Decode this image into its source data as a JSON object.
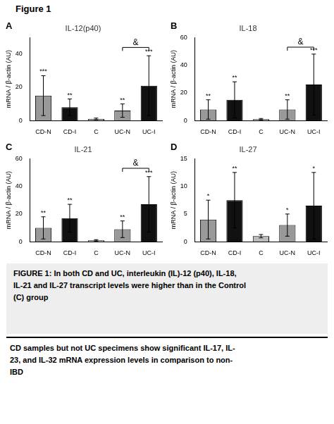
{
  "title": "Figure 1",
  "annotations": [
    "FIGURE 1: In both CD and UC, interleukin (IL)-12 (p40), IL-18,\nIL-21 and IL-27 transcript levels were higher than in the Control\n(C) group",
    "CD samples but not UC specimens show significant IL-17, IL-\n23, and IL-32 mRNA expression levels in comparison to non-\nIBD"
  ],
  "chart_data": [
    {
      "type": "bar",
      "label": "A",
      "title": "IL-12(p40)",
      "ylabel": "mRNA / β-actin (AU)",
      "categories": [
        "CD-N",
        "CD-I",
        "C",
        "UC-N",
        "UC-I"
      ],
      "values": [
        15,
        8,
        1,
        6,
        21
      ],
      "errors": [
        12,
        5,
        0.5,
        4,
        18
      ],
      "colors": [
        "#999999",
        "#111111",
        "#bbbbbb",
        "#999999",
        "#111111"
      ],
      "sig_labels": [
        "***",
        "**",
        null,
        "**",
        "***"
      ],
      "bracket": {
        "from": "UC-N",
        "to": "UC-I",
        "y": 44,
        "text": "&"
      },
      "ylim": [
        0,
        50
      ],
      "yticks": [
        0,
        20,
        40
      ],
      "grid": false
    },
    {
      "type": "bar",
      "label": "B",
      "title": "IL-18",
      "ylabel": "mRNA / β-actin (AU)",
      "categories": [
        "CD-N",
        "CD-I",
        "C",
        "UC-N",
        "UC-I"
      ],
      "values": [
        8,
        15,
        1,
        8,
        26
      ],
      "errors": [
        7,
        13,
        0.5,
        7,
        22
      ],
      "colors": [
        "#999999",
        "#111111",
        "#bbbbbb",
        "#999999",
        "#111111"
      ],
      "sig_labels": [
        "**",
        "**",
        null,
        "**",
        "***"
      ],
      "bracket": {
        "from": "UC-N",
        "to": "UC-I",
        "y": 53,
        "text": "&"
      },
      "ylim": [
        0,
        60
      ],
      "yticks": [
        0,
        20,
        40,
        60
      ],
      "grid": false
    },
    {
      "type": "bar",
      "label": "C",
      "title": "IL-21",
      "ylabel": "mRNA / β-actin (AU)",
      "categories": [
        "CD-N",
        "CD-I",
        "C",
        "UC-N",
        "UC-I"
      ],
      "values": [
        10,
        17,
        1,
        9,
        27
      ],
      "errors": [
        8,
        10,
        0.5,
        6,
        20
      ],
      "colors": [
        "#999999",
        "#111111",
        "#bbbbbb",
        "#999999",
        "#111111"
      ],
      "sig_labels": [
        "**",
        "**",
        null,
        "**",
        "***"
      ],
      "bracket": {
        "from": "UC-N",
        "to": "UC-I",
        "y": 53,
        "text": "&"
      },
      "ylim": [
        0,
        60
      ],
      "yticks": [
        0,
        20,
        40,
        60
      ],
      "grid": false
    },
    {
      "type": "bar",
      "label": "D",
      "title": "IL-27",
      "ylabel": "mRNA / β-actin (AU)",
      "categories": [
        "CD-N",
        "CD-I",
        "C",
        "UC-N",
        "UC-I"
      ],
      "values": [
        4,
        7.5,
        1,
        3,
        6.5
      ],
      "errors": [
        3.5,
        5,
        0.3,
        2,
        6
      ],
      "colors": [
        "#999999",
        "#111111",
        "#bbbbbb",
        "#999999",
        "#111111"
      ],
      "sig_labels": [
        "*",
        "**",
        null,
        "*",
        "*"
      ],
      "ylim": [
        0,
        15
      ],
      "yticks": [
        0,
        5,
        10,
        15
      ],
      "grid": false
    }
  ]
}
